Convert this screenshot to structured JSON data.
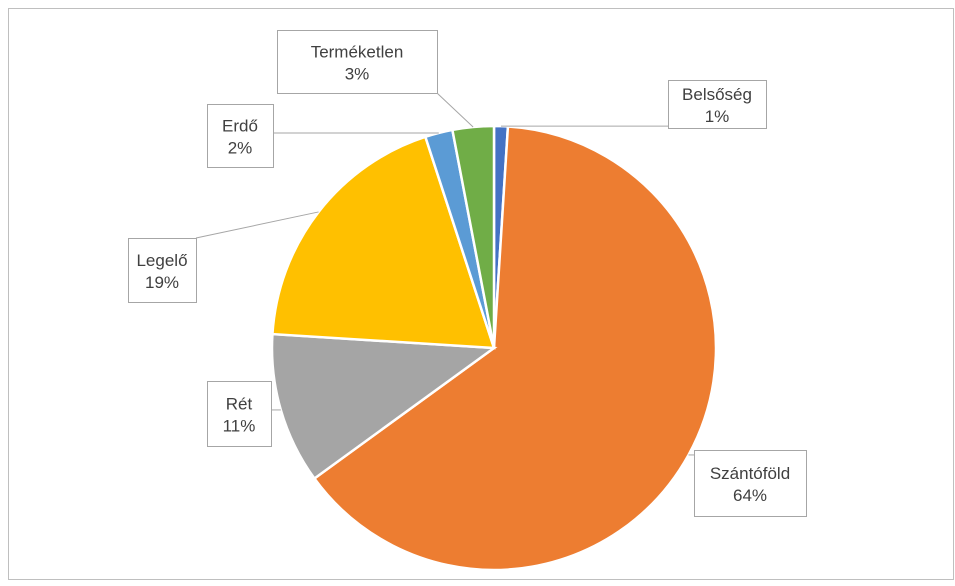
{
  "chart_data": {
    "type": "pie",
    "categories": [
      "Belsőség",
      "Szántóföld",
      "Rét",
      "Legelő",
      "Erdő",
      "Terméketlen"
    ],
    "values": [
      1,
      64,
      11,
      19,
      2,
      3
    ],
    "value_labels": [
      "1%",
      "64%",
      "11%",
      "19%",
      "2%",
      "3%"
    ],
    "colors": [
      "#4472c4",
      "#ed7d31",
      "#a5a5a5",
      "#ffc000",
      "#5b9bd5",
      "#70ad47"
    ]
  }
}
